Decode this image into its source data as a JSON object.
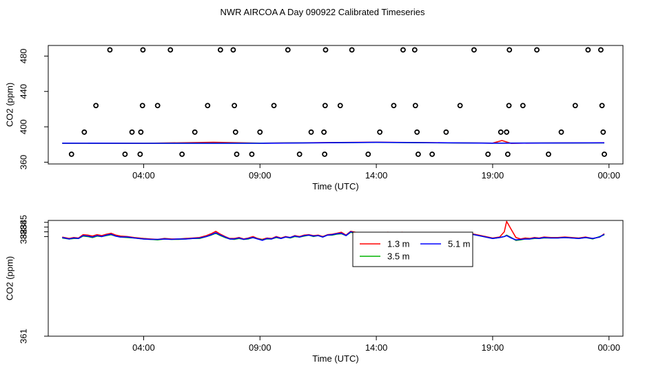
{
  "title": "NWR AIRCOA A  Day 090922  Calibrated Timeseries",
  "chart_data": [
    {
      "type": "line+scatter",
      "id": "top",
      "xlabel": "Time (UTC)",
      "ylabel": "CO2 (ppm)",
      "x_unit": "hours since 00:00 UTC",
      "xlim": [
        -0.1,
        24.6
      ],
      "ylim": [
        358,
        492
      ],
      "x_ticks": [
        4,
        9,
        14,
        19,
        24
      ],
      "x_tick_labels": [
        "04:00",
        "09:00",
        "14:00",
        "19:00",
        "00:00"
      ],
      "y_ticks": [
        360,
        400,
        440,
        480
      ],
      "y_tick_labels": [
        "360",
        "400",
        "440",
        "480"
      ],
      "grid": false,
      "lines": [
        {
          "name": "1.3 m",
          "color": "#ff0000",
          "x": [
            0.5,
            4.0,
            7.0,
            9.0,
            14.0,
            19.0,
            19.4,
            19.8,
            20.2,
            23.8
          ],
          "y": [
            381.5,
            381.4,
            382.5,
            381.5,
            382.6,
            381.5,
            384.5,
            381.3,
            381.5,
            382.0
          ]
        },
        {
          "name": "3.5 m",
          "color": "#00b400",
          "x": [
            0.5,
            4.0,
            9.0,
            14.0,
            19.0,
            23.8
          ],
          "y": [
            381.4,
            381.4,
            381.5,
            382.4,
            381.5,
            381.8
          ]
        },
        {
          "name": "5.1 m",
          "color": "#0000ff",
          "x": [
            0.5,
            4.0,
            9.0,
            14.0,
            19.0,
            23.8
          ],
          "y": [
            381.5,
            381.4,
            381.4,
            382.5,
            381.5,
            381.9
          ]
        }
      ],
      "points": {
        "marker": "open-circle",
        "color": "#000000",
        "data": [
          [
            0.9,
            369
          ],
          [
            1.45,
            394
          ],
          [
            1.95,
            424
          ],
          [
            2.55,
            487
          ],
          [
            3.2,
            369
          ],
          [
            3.5,
            394
          ],
          [
            3.85,
            369
          ],
          [
            3.88,
            394
          ],
          [
            3.95,
            424
          ],
          [
            3.97,
            487
          ],
          [
            4.6,
            424
          ],
          [
            5.15,
            487
          ],
          [
            5.65,
            369
          ],
          [
            6.2,
            394
          ],
          [
            6.75,
            424
          ],
          [
            7.3,
            487
          ],
          [
            7.85,
            487
          ],
          [
            7.9,
            424
          ],
          [
            7.95,
            394
          ],
          [
            8.0,
            369
          ],
          [
            8.65,
            369
          ],
          [
            9.0,
            394
          ],
          [
            9.6,
            424
          ],
          [
            10.2,
            487
          ],
          [
            10.7,
            369
          ],
          [
            11.2,
            394
          ],
          [
            11.75,
            394
          ],
          [
            11.8,
            424
          ],
          [
            11.82,
            487
          ],
          [
            11.78,
            369
          ],
          [
            12.45,
            424
          ],
          [
            12.95,
            487
          ],
          [
            13.65,
            369
          ],
          [
            14.15,
            394
          ],
          [
            14.75,
            424
          ],
          [
            15.15,
            487
          ],
          [
            15.65,
            487
          ],
          [
            15.68,
            424
          ],
          [
            15.75,
            394
          ],
          [
            15.8,
            369
          ],
          [
            16.4,
            369
          ],
          [
            17.0,
            394
          ],
          [
            17.6,
            424
          ],
          [
            18.2,
            487
          ],
          [
            18.8,
            369
          ],
          [
            19.35,
            394
          ],
          [
            19.6,
            394
          ],
          [
            19.65,
            369
          ],
          [
            19.7,
            424
          ],
          [
            19.72,
            487
          ],
          [
            20.3,
            424
          ],
          [
            20.9,
            487
          ],
          [
            21.4,
            369
          ],
          [
            21.95,
            394
          ],
          [
            22.55,
            424
          ],
          [
            23.1,
            487
          ],
          [
            23.65,
            487
          ],
          [
            23.7,
            424
          ],
          [
            23.75,
            394
          ],
          [
            23.8,
            369
          ]
        ]
      }
    },
    {
      "type": "line",
      "id": "bottom",
      "xlabel": "Time (UTC)",
      "ylabel": "CO2 (ppm)",
      "x_unit": "hours since 00:00 UTC",
      "xlim": [
        -0.1,
        24.6
      ],
      "ylim": [
        361,
        385.4
      ],
      "x_ticks": [
        4,
        9,
        14,
        19,
        24
      ],
      "x_tick_labels": [
        "04:00",
        "09:00",
        "14:00",
        "19:00",
        "00:00"
      ],
      "y_ticks": [
        361,
        382,
        383,
        384,
        385
      ],
      "y_tick_labels": [
        "361",
        "382",
        "383",
        "384",
        "385"
      ],
      "grid": false,
      "legend": {
        "placement": "top-right",
        "entries": [
          "1.3 m",
          "3.5 m",
          "5.1 m"
        ]
      },
      "series": [
        {
          "name": "1.3 m",
          "color": "#ff0000",
          "x": [
            0.5,
            0.8,
            1.0,
            1.2,
            1.4,
            1.6,
            1.8,
            2.0,
            2.2,
            2.4,
            2.6,
            2.8,
            3.0,
            3.3,
            3.6,
            4.0,
            4.3,
            4.6,
            4.9,
            5.2,
            5.5,
            5.8,
            6.1,
            6.4,
            6.7,
            6.9,
            7.1,
            7.3,
            7.5,
            7.7,
            7.9,
            8.1,
            8.3,
            8.5,
            8.7,
            8.9,
            9.1,
            9.3,
            9.5,
            9.7,
            9.9,
            10.1,
            10.3,
            10.5,
            10.7,
            10.9,
            11.1,
            11.3,
            11.5,
            11.7,
            11.9,
            12.1,
            12.3,
            12.5,
            12.7,
            12.9,
            13.1,
            13.3,
            13.5,
            13.7,
            13.9,
            14.2,
            14.5,
            14.8,
            15.1,
            15.4,
            15.7,
            16.0,
            16.3,
            16.6,
            16.9,
            17.2,
            17.5,
            17.8,
            18.1,
            18.4,
            18.7,
            19.0,
            19.3,
            19.5,
            19.6,
            19.8,
            20.0,
            20.2,
            20.4,
            20.6,
            20.8,
            21.0,
            21.2,
            21.5,
            21.8,
            22.1,
            22.4,
            22.7,
            23.0,
            23.3,
            23.6,
            23.8
          ],
          "y": [
            381.9,
            381.6,
            381.8,
            381.7,
            382.4,
            382.3,
            382.1,
            382.4,
            382.2,
            382.5,
            382.7,
            382.3,
            382.1,
            382.0,
            381.8,
            381.6,
            381.5,
            381.4,
            381.6,
            381.5,
            381.5,
            381.6,
            381.7,
            381.8,
            382.2,
            382.6,
            383.1,
            382.5,
            382.0,
            381.6,
            381.6,
            381.8,
            381.5,
            381.7,
            382.0,
            381.6,
            381.4,
            381.7,
            381.6,
            382.0,
            381.7,
            382.0,
            381.8,
            382.2,
            382.0,
            382.3,
            382.4,
            382.2,
            382.3,
            382.0,
            382.4,
            382.5,
            382.7,
            382.9,
            382.3,
            383.1,
            382.9,
            382.6,
            382.8,
            382.7,
            382.8,
            382.8,
            382.9,
            382.6,
            382.9,
            382.8,
            382.7,
            382.5,
            382.8,
            382.6,
            382.8,
            382.6,
            382.7,
            382.5,
            382.6,
            382.3,
            382.0,
            381.7,
            381.9,
            383.0,
            385.2,
            383.5,
            381.8,
            381.5,
            381.7,
            381.6,
            381.8,
            381.7,
            381.9,
            381.8,
            381.8,
            381.9,
            381.8,
            381.7,
            381.9,
            381.6,
            381.9,
            382.6
          ]
        },
        {
          "name": "3.5 m",
          "color": "#00b400",
          "x": [
            0.5,
            0.8,
            1.0,
            1.2,
            1.4,
            1.6,
            1.8,
            2.0,
            2.2,
            2.4,
            2.6,
            2.8,
            3.0,
            3.3,
            3.6,
            4.0,
            4.3,
            4.6,
            4.9,
            5.2,
            5.5,
            5.8,
            6.1,
            6.4,
            6.7,
            6.9,
            7.1,
            7.3,
            7.5,
            7.7,
            7.9,
            8.1,
            8.3,
            8.5,
            8.7,
            8.9,
            9.1,
            9.3,
            9.5,
            9.7,
            9.9,
            10.1,
            10.3,
            10.5,
            10.7,
            10.9,
            11.1,
            11.3,
            11.5,
            11.7,
            11.9,
            12.1,
            12.3,
            12.5,
            12.7,
            12.9,
            13.1,
            13.3,
            13.5,
            13.7,
            13.9,
            14.2,
            14.5,
            14.8,
            15.1,
            15.4,
            15.7,
            16.0,
            16.3,
            16.6,
            16.9,
            17.2,
            17.5,
            17.8,
            18.1,
            18.4,
            18.7,
            19.0,
            19.3,
            19.5,
            19.6,
            19.8,
            20.0,
            20.2,
            20.4,
            20.6,
            20.8,
            21.0,
            21.2,
            21.5,
            21.8,
            22.1,
            22.4,
            22.7,
            23.0,
            23.3,
            23.6,
            23.8
          ],
          "y": [
            381.7,
            381.5,
            381.6,
            381.6,
            382.1,
            382.0,
            381.8,
            382.1,
            382.0,
            382.2,
            382.4,
            382.1,
            381.9,
            381.8,
            381.7,
            381.5,
            381.4,
            381.3,
            381.5,
            381.4,
            381.4,
            381.5,
            381.6,
            381.6,
            382.0,
            382.3,
            382.7,
            382.2,
            381.8,
            381.5,
            381.4,
            381.6,
            381.4,
            381.5,
            381.8,
            381.5,
            381.3,
            381.5,
            381.5,
            381.8,
            381.6,
            381.9,
            381.7,
            382.0,
            381.9,
            382.1,
            382.3,
            382.0,
            382.2,
            381.9,
            382.3,
            382.3,
            382.5,
            382.6,
            382.2,
            382.9,
            382.7,
            382.5,
            382.6,
            382.6,
            382.7,
            382.7,
            382.8,
            382.6,
            382.8,
            382.7,
            382.6,
            382.5,
            382.7,
            382.5,
            382.7,
            382.5,
            382.6,
            382.4,
            382.5,
            382.2,
            381.9,
            381.6,
            381.8,
            382.0,
            382.3,
            381.8,
            381.2,
            381.3,
            381.5,
            381.5,
            381.6,
            381.6,
            381.7,
            381.7,
            381.7,
            381.8,
            381.7,
            381.6,
            381.8,
            381.5,
            382.0,
            382.4
          ]
        },
        {
          "name": "5.1 m",
          "color": "#0000ff",
          "x": [
            0.5,
            0.8,
            1.0,
            1.2,
            1.4,
            1.6,
            1.8,
            2.0,
            2.2,
            2.4,
            2.6,
            2.8,
            3.0,
            3.3,
            3.6,
            4.0,
            4.3,
            4.6,
            4.9,
            5.2,
            5.5,
            5.8,
            6.1,
            6.4,
            6.7,
            6.9,
            7.1,
            7.3,
            7.5,
            7.7,
            7.9,
            8.1,
            8.3,
            8.5,
            8.7,
            8.9,
            9.1,
            9.3,
            9.5,
            9.7,
            9.9,
            10.1,
            10.3,
            10.5,
            10.7,
            10.9,
            11.1,
            11.3,
            11.5,
            11.7,
            11.9,
            12.1,
            12.3,
            12.5,
            12.7,
            12.9,
            13.1,
            13.3,
            13.5,
            13.7,
            13.9,
            14.2,
            14.5,
            14.8,
            15.1,
            15.4,
            15.7,
            16.0,
            16.3,
            16.6,
            16.9,
            17.2,
            17.5,
            17.8,
            18.1,
            18.4,
            18.7,
            19.0,
            19.3,
            19.5,
            19.6,
            19.8,
            20.0,
            20.2,
            20.4,
            20.6,
            20.8,
            21.0,
            21.2,
            21.5,
            21.8,
            22.1,
            22.4,
            22.7,
            23.0,
            23.3,
            23.6,
            23.8
          ],
          "y": [
            381.8,
            381.5,
            381.7,
            381.6,
            382.2,
            382.1,
            381.9,
            382.2,
            382.0,
            382.3,
            382.5,
            382.1,
            381.9,
            381.9,
            381.7,
            381.5,
            381.4,
            381.4,
            381.5,
            381.4,
            381.5,
            381.5,
            381.6,
            381.7,
            382.0,
            382.4,
            382.8,
            382.3,
            381.9,
            381.5,
            381.5,
            381.7,
            381.4,
            381.6,
            381.8,
            381.5,
            381.2,
            381.6,
            381.5,
            381.9,
            381.6,
            381.9,
            381.8,
            382.1,
            381.9,
            382.2,
            382.3,
            382.1,
            382.2,
            381.9,
            382.3,
            382.4,
            382.6,
            382.7,
            382.2,
            383.0,
            382.8,
            382.5,
            382.7,
            382.6,
            382.7,
            382.7,
            382.8,
            382.6,
            382.8,
            382.7,
            382.6,
            382.5,
            382.7,
            382.6,
            382.7,
            382.5,
            382.6,
            382.4,
            382.5,
            382.2,
            381.9,
            381.6,
            381.8,
            382.0,
            382.2,
            381.7,
            381.3,
            381.4,
            381.5,
            381.5,
            381.7,
            381.6,
            381.8,
            381.7,
            381.7,
            381.8,
            381.7,
            381.6,
            381.8,
            381.6,
            381.9,
            382.5
          ]
        }
      ]
    }
  ]
}
